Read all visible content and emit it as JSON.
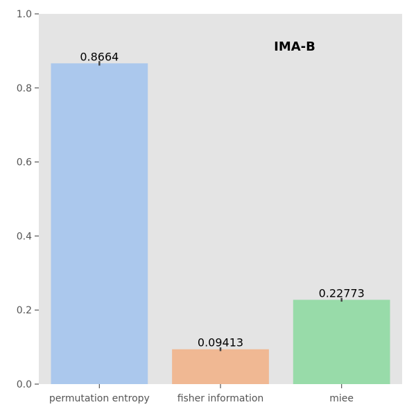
{
  "chart_data": {
    "type": "bar",
    "title": "IMA-B",
    "xlabel": "",
    "ylabel": "",
    "categories": [
      "permutation entropy",
      "fisher information",
      "miee"
    ],
    "values": [
      0.8664,
      0.09413,
      0.22773
    ],
    "value_labels": [
      "0.8664",
      "0.09413",
      "0.22773"
    ],
    "error": [
      0.006,
      0.005,
      0.005
    ],
    "ylim": [
      0,
      1.0
    ],
    "yticks": [
      0.0,
      0.2,
      0.4,
      0.6,
      0.8,
      1.0
    ],
    "ytick_labels": [
      "0.0",
      "0.2",
      "0.4",
      "0.6",
      "0.8",
      "1.0"
    ],
    "colors": [
      "#abc8ed",
      "#f0b893",
      "#98dba9"
    ],
    "background": "#e4e4e4",
    "grid": false,
    "legend": "none"
  }
}
